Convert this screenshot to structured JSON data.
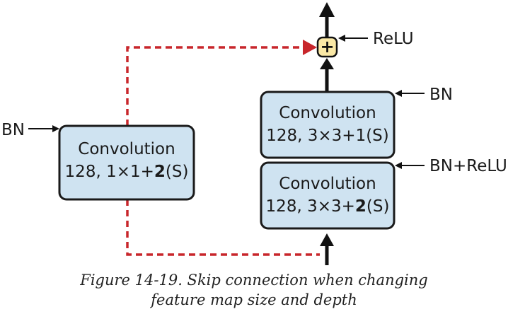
{
  "diagram": {
    "left_box": {
      "line1": "Convolution",
      "line2_prefix": "128, 1×1+",
      "line2_bold": "2",
      "line2_suffix": "(S)",
      "input_label": "BN"
    },
    "right_top_box": {
      "line1": "Convolution",
      "line2_prefix": "128, 3×3+1(S)",
      "line2_bold": "",
      "line2_suffix": "",
      "input_label": "BN"
    },
    "right_bottom_box": {
      "line1": "Convolution",
      "line2_prefix": "128, 3×3+",
      "line2_bold": "2",
      "line2_suffix": "(S)",
      "input_label": "BN+ReLU"
    },
    "add_node": {
      "symbol": "+",
      "label": "ReLU"
    },
    "colors": {
      "box_fill": "#cfe3f1",
      "skip_connection": "#c8262b",
      "add_node_fill": "#fbe9a6"
    }
  },
  "caption": {
    "line1": "Figure 14-19. Skip connection when changing",
    "line2": "feature map size and depth"
  }
}
